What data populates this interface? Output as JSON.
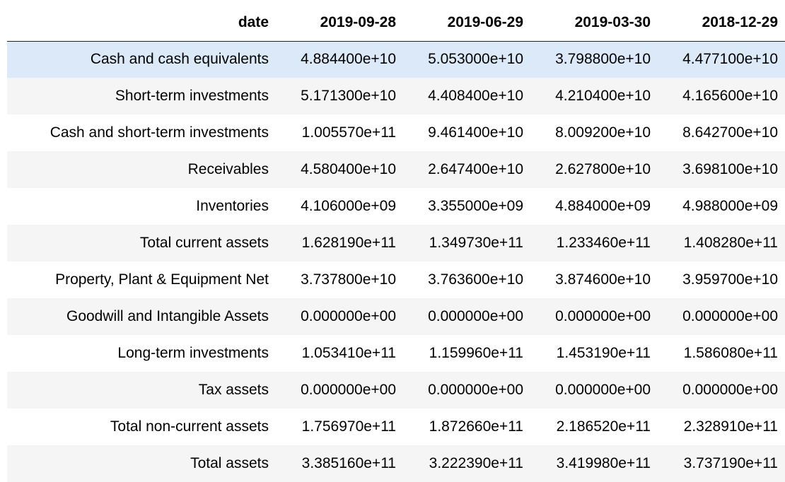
{
  "table": {
    "index_header": "date",
    "columns": [
      "2019-09-28",
      "2019-06-29",
      "2019-03-30",
      "2018-12-29"
    ],
    "hovered_row": 0,
    "rows": [
      {
        "label": "Cash and cash equivalents",
        "values": [
          "4.884400e+10",
          "5.053000e+10",
          "3.798800e+10",
          "4.477100e+10"
        ]
      },
      {
        "label": "Short-term investments",
        "values": [
          "5.171300e+10",
          "4.408400e+10",
          "4.210400e+10",
          "4.165600e+10"
        ]
      },
      {
        "label": "Cash and short-term investments",
        "values": [
          "1.005570e+11",
          "9.461400e+10",
          "8.009200e+10",
          "8.642700e+10"
        ]
      },
      {
        "label": "Receivables",
        "values": [
          "4.580400e+10",
          "2.647400e+10",
          "2.627800e+10",
          "3.698100e+10"
        ]
      },
      {
        "label": "Inventories",
        "values": [
          "4.106000e+09",
          "3.355000e+09",
          "4.884000e+09",
          "4.988000e+09"
        ]
      },
      {
        "label": "Total current assets",
        "values": [
          "1.628190e+11",
          "1.349730e+11",
          "1.233460e+11",
          "1.408280e+11"
        ]
      },
      {
        "label": "Property, Plant & Equipment Net",
        "values": [
          "3.737800e+10",
          "3.763600e+10",
          "3.874600e+10",
          "3.959700e+10"
        ]
      },
      {
        "label": "Goodwill and Intangible Assets",
        "values": [
          "0.000000e+00",
          "0.000000e+00",
          "0.000000e+00",
          "0.000000e+00"
        ]
      },
      {
        "label": "Long-term investments",
        "values": [
          "1.053410e+11",
          "1.159960e+11",
          "1.453190e+11",
          "1.586080e+11"
        ]
      },
      {
        "label": "Tax assets",
        "values": [
          "0.000000e+00",
          "0.000000e+00",
          "0.000000e+00",
          "0.000000e+00"
        ]
      },
      {
        "label": "Total non-current assets",
        "values": [
          "1.756970e+11",
          "1.872660e+11",
          "2.186520e+11",
          "2.328910e+11"
        ]
      },
      {
        "label": "Total assets",
        "values": [
          "3.385160e+11",
          "3.222390e+11",
          "3.419980e+11",
          "3.737190e+11"
        ]
      }
    ],
    "colors": {
      "hover_row": "#dbe9f8",
      "stripe_row": "#f5f5f5",
      "header_rule": "#222222"
    }
  }
}
